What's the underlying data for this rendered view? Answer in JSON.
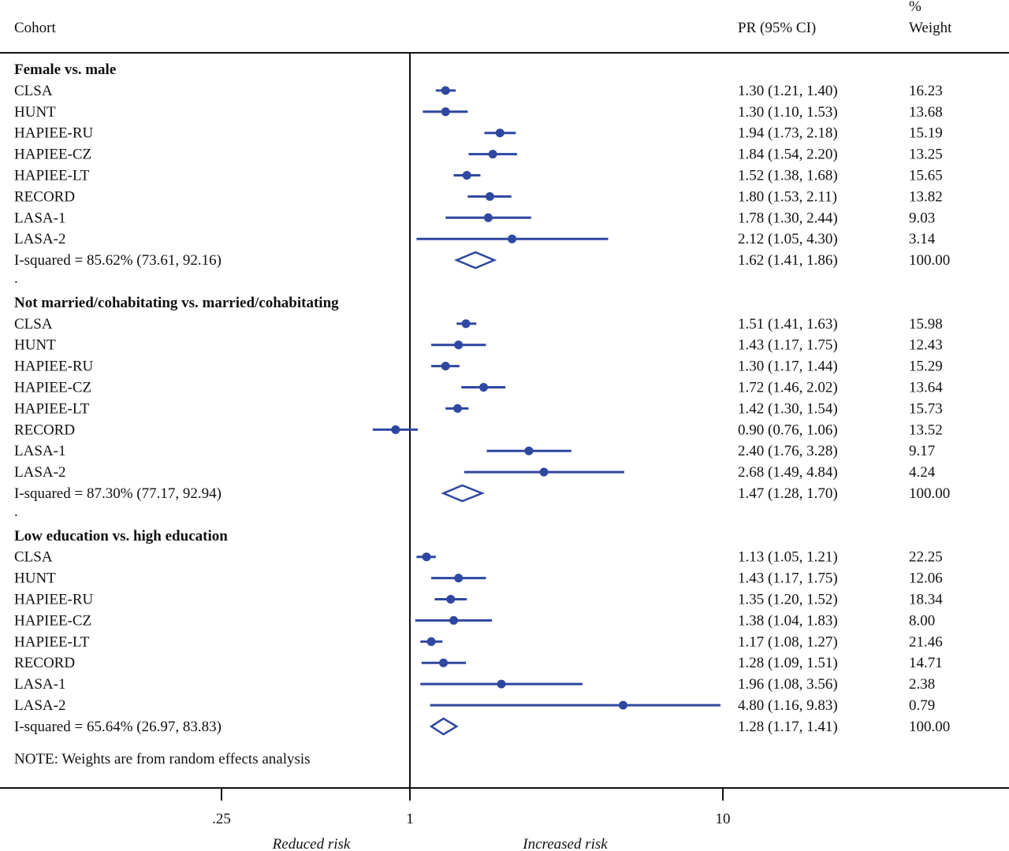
{
  "chart_data": {
    "type": "forest",
    "x_scale": "log",
    "xticks": [
      {
        "value": 0.25,
        "label": ".25"
      },
      {
        "value": 1,
        "label": "1"
      },
      {
        "value": 10,
        "label": "10"
      }
    ],
    "reference_line": 1,
    "headers": {
      "cohort": "Cohort",
      "pr": "PR (95% CI)",
      "weight_top": "%",
      "weight": "Weight"
    },
    "x_annotations": {
      "left": "Reduced risk",
      "right": "Increased risk"
    },
    "note": "NOTE: Weights are from random effects analysis",
    "separator": ".",
    "marker_color": "#2e47a0",
    "groups": [
      {
        "title": "Female vs. male",
        "studies": [
          {
            "name": "CLSA",
            "pr": 1.3,
            "lo": 1.21,
            "hi": 1.4,
            "ci_text": "1.30 (1.21, 1.40)",
            "weight": "16.23"
          },
          {
            "name": "HUNT",
            "pr": 1.3,
            "lo": 1.1,
            "hi": 1.53,
            "ci_text": "1.30 (1.10, 1.53)",
            "weight": "13.68"
          },
          {
            "name": "HAPIEE-RU",
            "pr": 1.94,
            "lo": 1.73,
            "hi": 2.18,
            "ci_text": "1.94 (1.73, 2.18)",
            "weight": "15.19"
          },
          {
            "name": "HAPIEE-CZ",
            "pr": 1.84,
            "lo": 1.54,
            "hi": 2.2,
            "ci_text": "1.84 (1.54, 2.20)",
            "weight": "13.25"
          },
          {
            "name": "HAPIEE-LT",
            "pr": 1.52,
            "lo": 1.38,
            "hi": 1.68,
            "ci_text": "1.52 (1.38, 1.68)",
            "weight": "15.65"
          },
          {
            "name": "RECORD",
            "pr": 1.8,
            "lo": 1.53,
            "hi": 2.11,
            "ci_text": "1.80 (1.53, 2.11)",
            "weight": "13.82"
          },
          {
            "name": "LASA-1",
            "pr": 1.78,
            "lo": 1.3,
            "hi": 2.44,
            "ci_text": "1.78 (1.30, 2.44)",
            "weight": "9.03"
          },
          {
            "name": "LASA-2",
            "pr": 2.12,
            "lo": 1.05,
            "hi": 4.3,
            "ci_text": "2.12 (1.05, 4.30)",
            "weight": "3.14"
          }
        ],
        "overall": {
          "label": "I-squared = 85.62% (73.61, 92.16)",
          "pr": 1.62,
          "lo": 1.41,
          "hi": 1.86,
          "ci_text": "1.62 (1.41, 1.86)",
          "weight": "100.00"
        }
      },
      {
        "title": "Not married/cohabitating vs. married/cohabitating",
        "studies": [
          {
            "name": "CLSA",
            "pr": 1.51,
            "lo": 1.41,
            "hi": 1.63,
            "ci_text": "1.51 (1.41, 1.63)",
            "weight": "15.98"
          },
          {
            "name": "HUNT",
            "pr": 1.43,
            "lo": 1.17,
            "hi": 1.75,
            "ci_text": "1.43 (1.17, 1.75)",
            "weight": "12.43"
          },
          {
            "name": "HAPIEE-RU",
            "pr": 1.3,
            "lo": 1.17,
            "hi": 1.44,
            "ci_text": "1.30 (1.17, 1.44)",
            "weight": "15.29"
          },
          {
            "name": "HAPIEE-CZ",
            "pr": 1.72,
            "lo": 1.46,
            "hi": 2.02,
            "ci_text": "1.72 (1.46, 2.02)",
            "weight": "13.64"
          },
          {
            "name": "HAPIEE-LT",
            "pr": 1.42,
            "lo": 1.3,
            "hi": 1.54,
            "ci_text": "1.42 (1.30, 1.54)",
            "weight": "15.73"
          },
          {
            "name": "RECORD",
            "pr": 0.9,
            "lo": 0.76,
            "hi": 1.06,
            "ci_text": "0.90 (0.76, 1.06)",
            "weight": "13.52"
          },
          {
            "name": "LASA-1",
            "pr": 2.4,
            "lo": 1.76,
            "hi": 3.28,
            "ci_text": "2.40 (1.76, 3.28)",
            "weight": "9.17"
          },
          {
            "name": "LASA-2",
            "pr": 2.68,
            "lo": 1.49,
            "hi": 4.84,
            "ci_text": "2.68 (1.49, 4.84)",
            "weight": "4.24"
          }
        ],
        "overall": {
          "label": "I-squared = 87.30% (77.17, 92.94)",
          "pr": 1.47,
          "lo": 1.28,
          "hi": 1.7,
          "ci_text": "1.47 (1.28, 1.70)",
          "weight": "100.00"
        }
      },
      {
        "title": "Low education vs. high education",
        "studies": [
          {
            "name": "CLSA",
            "pr": 1.13,
            "lo": 1.05,
            "hi": 1.21,
            "ci_text": "1.13 (1.05, 1.21)",
            "weight": "22.25"
          },
          {
            "name": "HUNT",
            "pr": 1.43,
            "lo": 1.17,
            "hi": 1.75,
            "ci_text": "1.43 (1.17, 1.75)",
            "weight": "12.06"
          },
          {
            "name": "HAPIEE-RU",
            "pr": 1.35,
            "lo": 1.2,
            "hi": 1.52,
            "ci_text": "1.35 (1.20, 1.52)",
            "weight": "18.34"
          },
          {
            "name": "HAPIEE-CZ",
            "pr": 1.38,
            "lo": 1.04,
            "hi": 1.83,
            "ci_text": "1.38 (1.04, 1.83)",
            "weight": "8.00"
          },
          {
            "name": "HAPIEE-LT",
            "pr": 1.17,
            "lo": 1.08,
            "hi": 1.27,
            "ci_text": "1.17 (1.08, 1.27)",
            "weight": "21.46"
          },
          {
            "name": "RECORD",
            "pr": 1.28,
            "lo": 1.09,
            "hi": 1.51,
            "ci_text": "1.28 (1.09, 1.51)",
            "weight": "14.71"
          },
          {
            "name": "LASA-1",
            "pr": 1.96,
            "lo": 1.08,
            "hi": 3.56,
            "ci_text": "1.96 (1.08, 3.56)",
            "weight": "2.38"
          },
          {
            "name": "LASA-2",
            "pr": 4.8,
            "lo": 1.16,
            "hi": 9.83,
            "ci_text": "4.80 (1.16, 9.83)",
            "weight": "0.79"
          }
        ],
        "overall": {
          "label": "I-squared = 65.64% (26.97, 83.83)",
          "pr": 1.28,
          "lo": 1.17,
          "hi": 1.41,
          "ci_text": "1.28 (1.17, 1.41)",
          "weight": "100.00"
        }
      }
    ]
  }
}
